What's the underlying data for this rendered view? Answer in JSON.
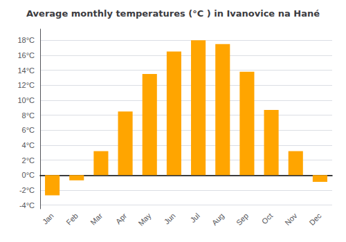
{
  "chart_data": {
    "type": "bar",
    "title": "Average monthly temperatures (°C ) in Ivanovice na Hané",
    "categories": [
      "Jan",
      "Feb",
      "Mar",
      "Apr",
      "May",
      "Jun",
      "Jul",
      "Aug",
      "Sep",
      "Oct",
      "Nov",
      "Dec"
    ],
    "values": [
      -2.7,
      -0.7,
      3.2,
      8.5,
      13.5,
      16.5,
      18.0,
      17.5,
      13.8,
      8.7,
      3.2,
      -0.9
    ],
    "color": "#FFA500",
    "ylim": [
      -4.5,
      19.5
    ],
    "yticks": [
      {
        "value": -4,
        "label": "-4°C"
      },
      {
        "value": -2,
        "label": "-2°C"
      },
      {
        "value": 0,
        "label": "0°C"
      },
      {
        "value": 2,
        "label": "2°C"
      },
      {
        "value": 4,
        "label": "4°C"
      },
      {
        "value": 6,
        "label": "6°C"
      },
      {
        "value": 8,
        "label": "8°C"
      },
      {
        "value": 10,
        "label": "10°C"
      },
      {
        "value": 12,
        "label": "12°C"
      },
      {
        "value": 14,
        "label": "14°C"
      },
      {
        "value": 16,
        "label": "16°C"
      },
      {
        "value": 18,
        "label": "18°C"
      }
    ],
    "grid": true
  }
}
